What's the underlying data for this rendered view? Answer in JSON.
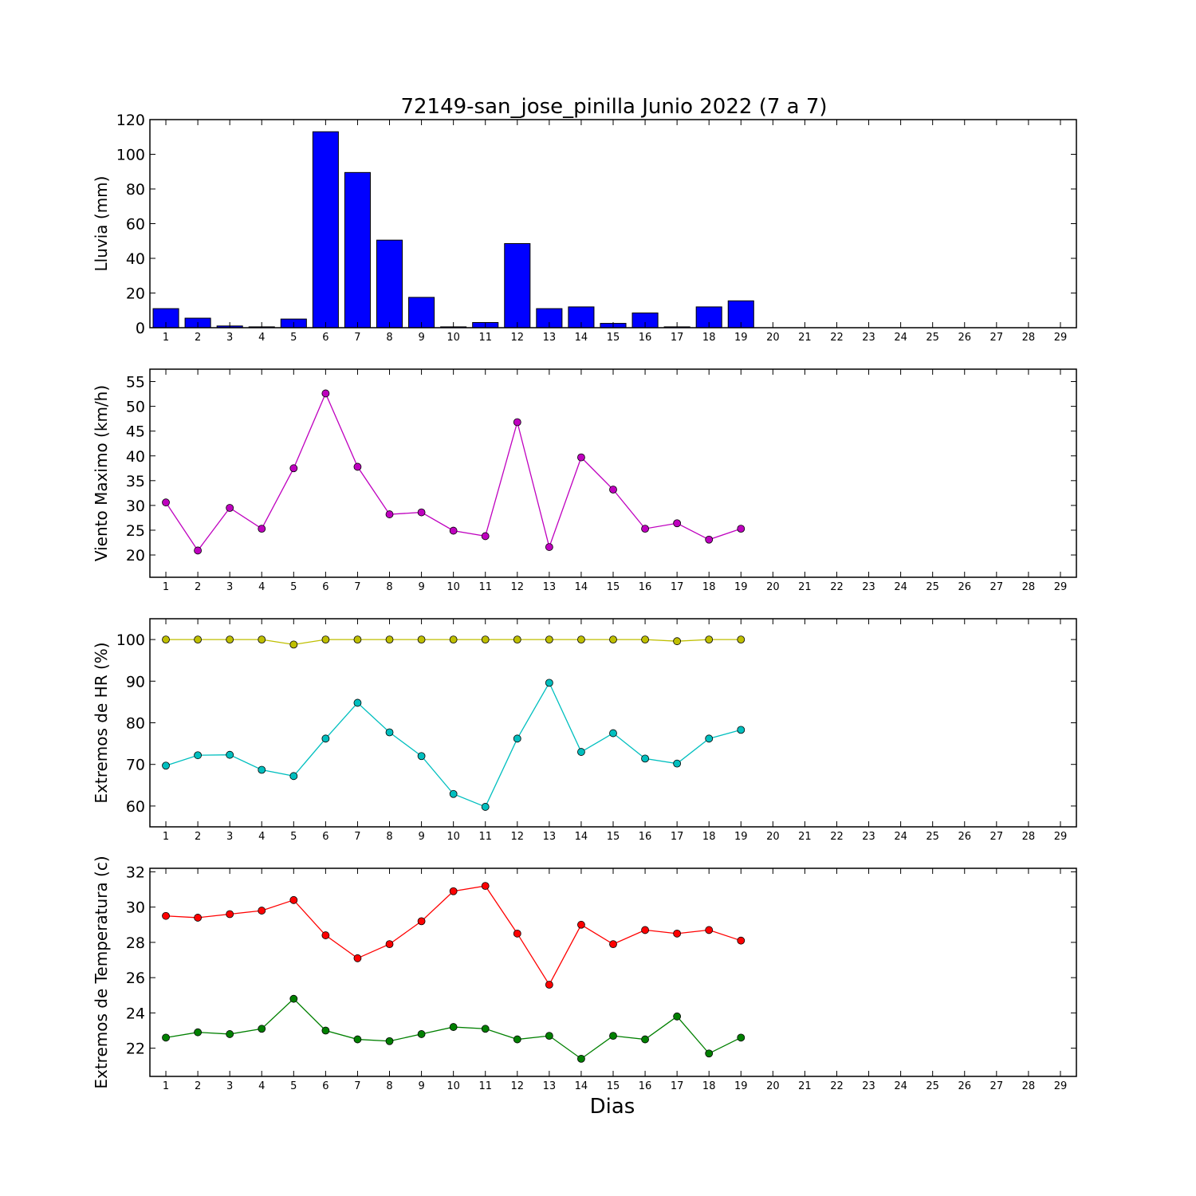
{
  "chart_data": {
    "title": "72149-san_jose_pinilla Junio 2022  (7 a 7)",
    "xlabel": "Dias",
    "days": [
      1,
      2,
      3,
      4,
      5,
      6,
      7,
      8,
      9,
      10,
      11,
      12,
      13,
      14,
      15,
      16,
      17,
      18,
      19,
      20,
      21,
      22,
      23,
      24,
      25,
      26,
      27,
      28,
      29
    ],
    "panels": [
      {
        "type": "bar",
        "ylabel": "Lluvia (mm)",
        "ylim": [
          0,
          120
        ],
        "yticks": [
          0,
          20,
          40,
          60,
          80,
          100,
          120
        ],
        "series": [
          {
            "color": "#0000ff",
            "values": [
              11,
              5.5,
              1,
              0.5,
              5,
              113,
              89.5,
              50.5,
              17.5,
              0.5,
              3,
              48.5,
              11,
              12,
              2.5,
              8.5,
              0.5,
              12,
              15.5
            ]
          }
        ]
      },
      {
        "type": "line",
        "ylabel": "Viento Maximo (km/h)",
        "ylim": [
          15.5,
          57.5
        ],
        "yticks": [
          20,
          25,
          30,
          35,
          40,
          45,
          50,
          55
        ],
        "series": [
          {
            "color": "#bf00bf",
            "values": [
              30.6,
              20.9,
              29.5,
              25.3,
              37.5,
              52.6,
              37.8,
              28.2,
              28.6,
              24.9,
              23.8,
              46.8,
              21.6,
              39.7,
              33.2,
              25.3,
              26.4,
              23.1,
              25.3
            ]
          }
        ]
      },
      {
        "type": "line",
        "ylabel": "Extremos de HR (%)",
        "ylim": [
          55,
          105
        ],
        "yticks": [
          60,
          70,
          80,
          90,
          100
        ],
        "series": [
          {
            "color": "#bfbf00",
            "values": [
              100,
              100,
              100,
              100,
              98.8,
              100,
              100,
              100,
              100,
              100,
              100,
              100,
              100,
              100,
              100,
              100,
              99.6,
              100,
              100
            ]
          },
          {
            "color": "#00bfbf",
            "values": [
              69.7,
              72.2,
              72.3,
              68.7,
              67.2,
              76.2,
              84.8,
              77.7,
              72.0,
              62.9,
              59.8,
              76.2,
              89.6,
              73.0,
              77.5,
              71.4,
              70.2,
              76.2,
              78.3
            ]
          }
        ]
      },
      {
        "type": "line",
        "ylabel": "Extremos de Temperatura (c)",
        "ylim": [
          20.4,
          32.2
        ],
        "yticks": [
          22,
          24,
          26,
          28,
          30,
          32
        ],
        "series": [
          {
            "color": "#ff0000",
            "values": [
              29.5,
              29.4,
              29.6,
              29.8,
              30.4,
              28.4,
              27.1,
              27.9,
              29.2,
              30.9,
              31.2,
              28.5,
              25.6,
              29.0,
              27.9,
              28.7,
              28.5,
              28.7,
              28.1
            ]
          },
          {
            "color": "#008000",
            "values": [
              22.6,
              22.9,
              22.8,
              23.1,
              24.8,
              23.0,
              22.5,
              22.4,
              22.8,
              23.2,
              23.1,
              22.5,
              22.7,
              21.4,
              22.7,
              22.5,
              23.8,
              21.7,
              22.6
            ]
          }
        ]
      }
    ]
  }
}
